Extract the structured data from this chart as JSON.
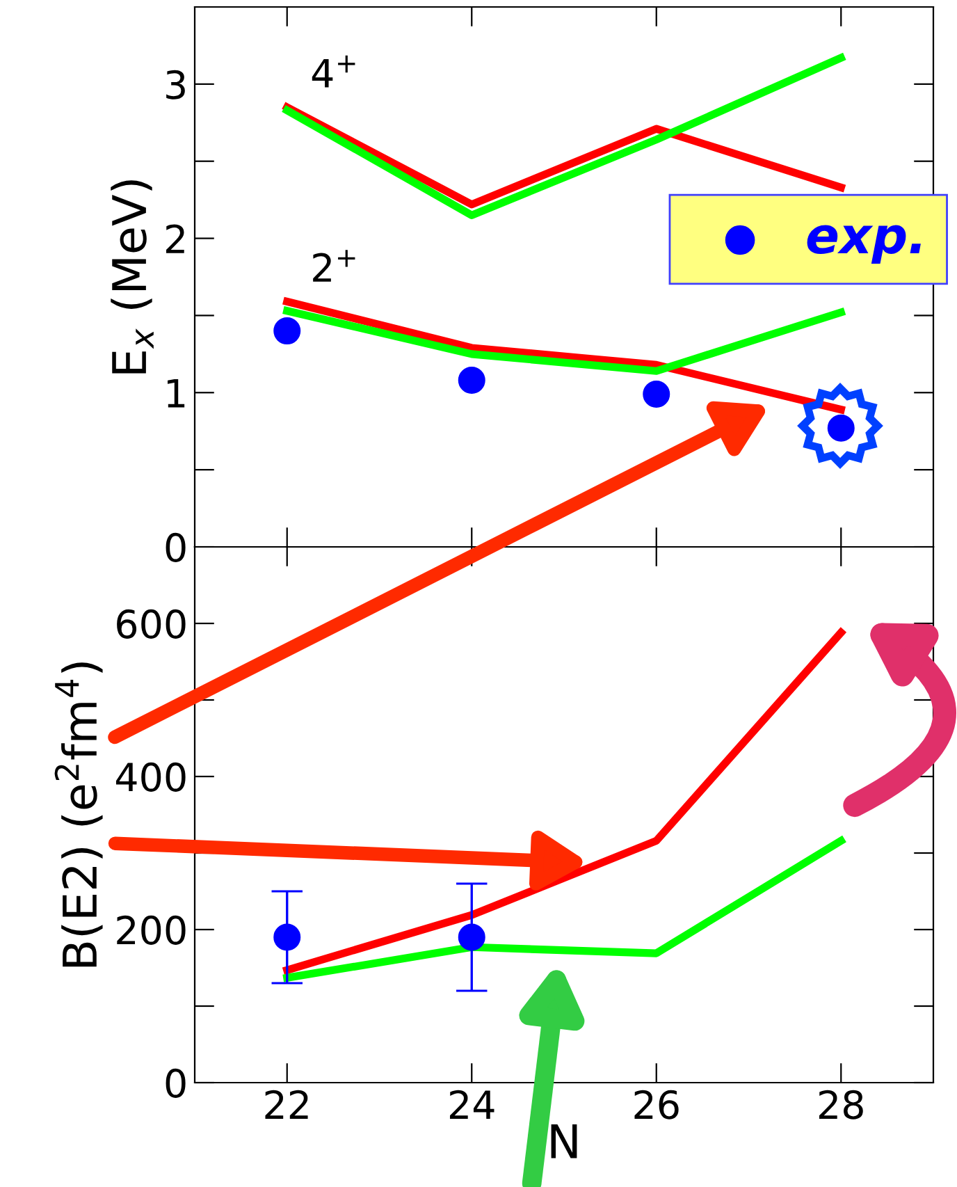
{
  "chart_data": [
    {
      "type": "line",
      "x": [
        22,
        24,
        26,
        28
      ],
      "ylabel": "E$_{x}$ (MeV)",
      "xlim": [
        21,
        29
      ],
      "xticks": [
        {
          "value": 22,
          "label": null
        },
        {
          "value": 24,
          "label": null
        },
        {
          "value": 26,
          "label": null
        },
        {
          "value": 28,
          "label": null
        }
      ],
      "ylim": [
        0,
        3.5
      ],
      "yticks": [
        0,
        {
          "value": 0.5,
          "label": null
        },
        1,
        {
          "value": 1.5,
          "label": null
        },
        2,
        {
          "value": 2.5,
          "label": null
        },
        3
      ],
      "tick_labels": "y",
      "grid": false,
      "legend": "right",
      "marker": "none",
      "line_style": "solid",
      "series": [
        {
          "color": "#ff0000",
          "values": [
            2.85,
            2.22,
            2.71,
            2.33
          ]
        },
        {
          "color": "#00ff00",
          "values": [
            2.83,
            2.15,
            2.64,
            3.17
          ]
        },
        {
          "color": "#ff0000",
          "values": [
            1.59,
            1.29,
            1.18,
            0.89
          ]
        },
        {
          "color": "#00ff00",
          "values": [
            1.53,
            1.25,
            1.14,
            1.52
          ]
        },
        {
          "type": "scatter",
          "name": "exp.",
          "color": "#0000ff",
          "marker": "circle",
          "values": [
            1.4,
            1.08,
            0.99,
            0.77
          ]
        }
      ],
      "annotations": [
        "4$^{+}$",
        "2$^{+}$"
      ]
    },
    {
      "type": "line",
      "x": [
        22,
        24,
        26,
        28
      ],
      "xlabel": "N",
      "ylabel": "B(E2) (e$^{2}$fm$^{4}$)",
      "xlim": [
        21,
        29
      ],
      "xticks": [
        22,
        24,
        26,
        28
      ],
      "ylim": [
        0,
        700
      ],
      "yticks": [
        0,
        {
          "value": 100,
          "label": null
        },
        200,
        {
          "value": 300,
          "label": null
        },
        400,
        {
          "value": 500,
          "label": null
        },
        600
      ],
      "grid": false,
      "legend": false,
      "marker": "none",
      "line_style": "solid",
      "series": [
        {
          "color": "#ff0000",
          "values": [
            147,
            219,
            316,
            588
          ]
        },
        {
          "color": "#00ff00",
          "values": [
            137,
            177,
            169,
            316
          ]
        },
        {
          "type": "scatter",
          "color": "#0000ff",
          "marker": "circle",
          "x": [
            22,
            24
          ],
          "values": [
            190,
            190
          ],
          "errors": [
            [
              130,
              250
            ],
            [
              120,
              260
            ]
          ]
        }
      ]
    }
  ]
}
